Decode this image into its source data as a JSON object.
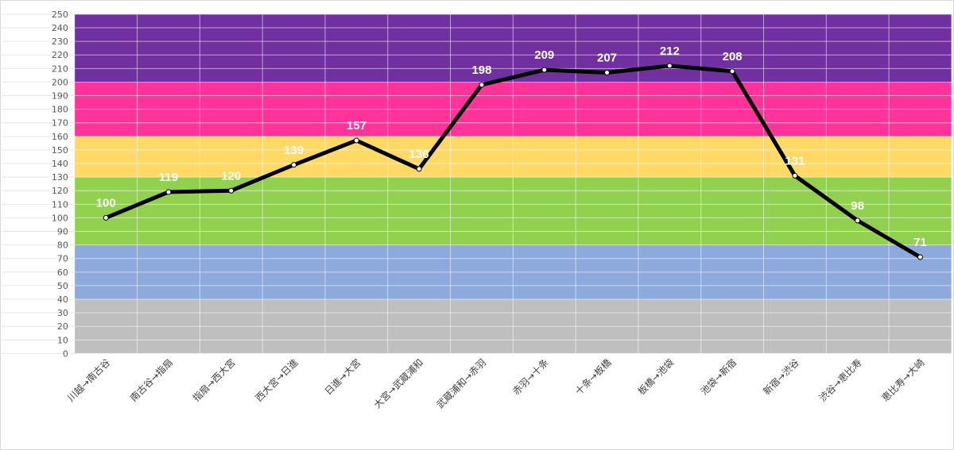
{
  "chart_data": {
    "type": "line",
    "title": "",
    "xlabel": "",
    "ylabel": "",
    "ylim": [
      0,
      250
    ],
    "ytick_step": 10,
    "grid": true,
    "categories": [
      "川越→南古谷",
      "南古谷→指扇",
      "指扇→西大宮",
      "西大宮→日進",
      "日進→大宮",
      "大宮→武蔵浦和",
      "武蔵浦和→赤羽",
      "赤羽→十条",
      "十条→板橋",
      "板橋→池袋",
      "池袋→新宿",
      "新宿→渋谷",
      "渋谷→恵比寿",
      "恵比寿→大崎"
    ],
    "values": [
      100,
      119,
      120,
      139,
      157,
      136,
      198,
      209,
      207,
      212,
      208,
      131,
      98,
      71
    ],
    "bands": [
      {
        "from": 0,
        "to": 40,
        "color": "#BFBFBF"
      },
      {
        "from": 40,
        "to": 80,
        "color": "#8EA9DB"
      },
      {
        "from": 80,
        "to": 130,
        "color": "#92D050"
      },
      {
        "from": 130,
        "to": 160,
        "color": "#FFD966"
      },
      {
        "from": 160,
        "to": 200,
        "color": "#FF3399"
      },
      {
        "from": 200,
        "to": 250,
        "color": "#7030A0"
      }
    ],
    "line_color": "#000000"
  }
}
